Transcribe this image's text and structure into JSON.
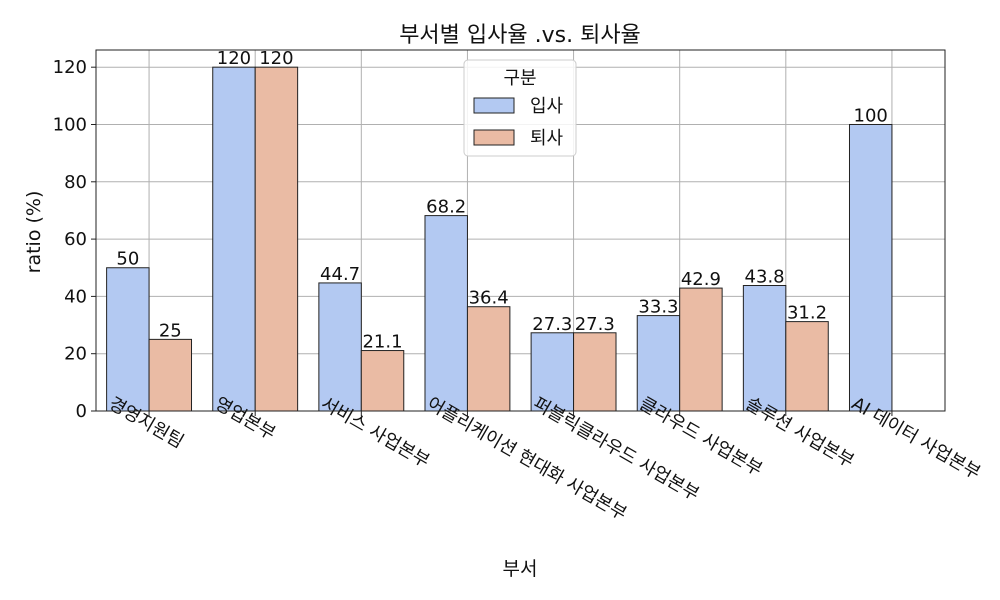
{
  "chart_data": {
    "type": "bar",
    "title": "부서별 입사율 .vs. 퇴사율",
    "xlabel": "부서",
    "ylabel": "ratio (%)",
    "ylim": [
      0,
      126
    ],
    "yticks": [
      0,
      20,
      40,
      60,
      80,
      100,
      120
    ],
    "grid": true,
    "legend": {
      "title": "구분",
      "placement": "top-center"
    },
    "categories": [
      "경영지원팀",
      "영업본부",
      "서비스 사업본부",
      "어플리케이션 현대화 사업본부",
      "퍼블릭클라우드 사업본부",
      "클라우드 사업본부",
      "솔루션 사업본부",
      "AI 데이터 사업본부"
    ],
    "series": [
      {
        "name": "입사",
        "color": "#b3c9f2",
        "values": [
          50,
          120,
          44.7,
          68.2,
          27.3,
          33.3,
          43.8,
          100
        ],
        "labels": [
          "50",
          "120",
          "44.7",
          "68.2",
          "27.3",
          "33.3",
          "43.8",
          "100"
        ]
      },
      {
        "name": "퇴사",
        "color": "#eabba4",
        "values": [
          25,
          120,
          21.1,
          36.4,
          27.3,
          42.9,
          31.2,
          0
        ],
        "labels": [
          "25",
          "120",
          "21.1",
          "36.4",
          "27.3",
          "42.9",
          "31.2",
          ""
        ]
      }
    ]
  }
}
